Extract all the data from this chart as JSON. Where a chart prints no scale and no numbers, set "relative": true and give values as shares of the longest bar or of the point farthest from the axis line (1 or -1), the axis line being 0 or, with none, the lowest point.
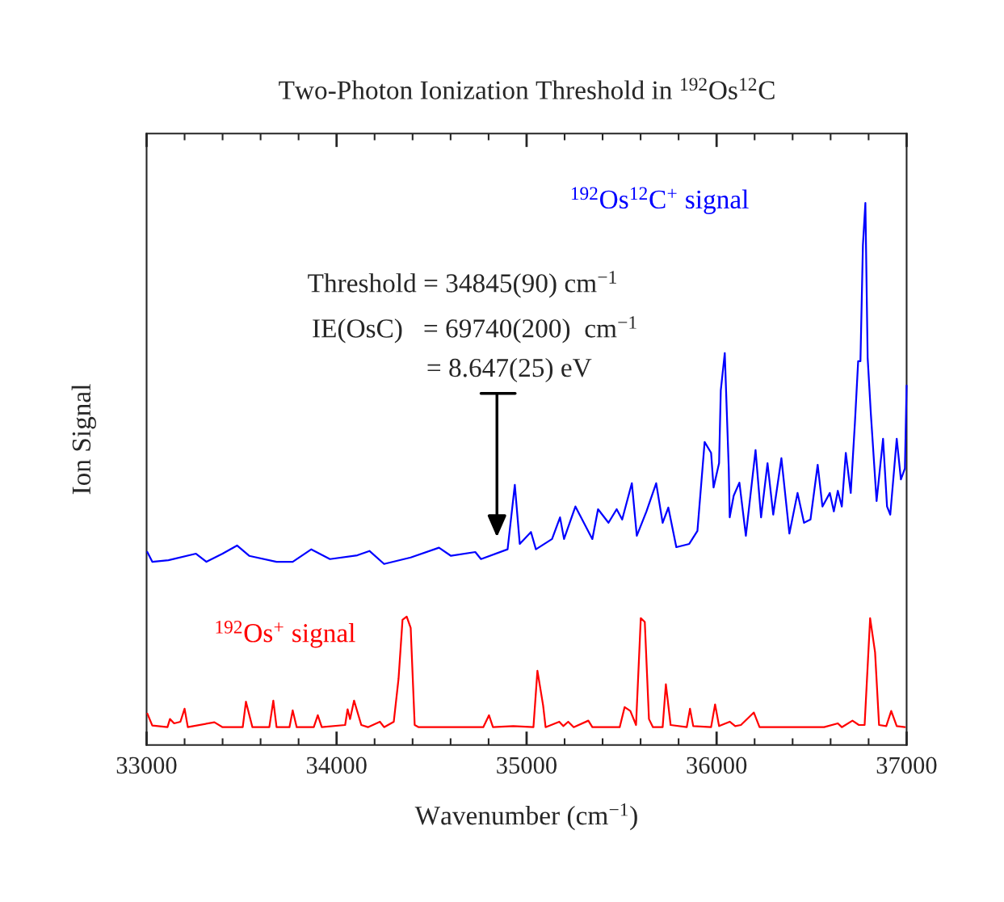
{
  "chart_data": {
    "type": "line",
    "title": "Two-Photon Ionization Threshold in $^{192}$Os$^{12}$C",
    "xlabel": "Wavenumber (cm$^{−1}$)",
    "ylabel": "Ion Signal",
    "relative": true,
    "legend": false,
    "grid": false,
    "marker": "none",
    "line_style": "solid",
    "xlim": [
      33000,
      37000
    ],
    "xticks": [
      33000,
      {
        "value": 33200,
        "label": null
      },
      {
        "value": 33400,
        "label": null
      },
      {
        "value": 33600,
        "label": null
      },
      {
        "value": 33800,
        "label": null
      },
      34000,
      {
        "value": 34200,
        "label": null
      },
      {
        "value": 34400,
        "label": null
      },
      {
        "value": 34600,
        "label": null
      },
      {
        "value": 34800,
        "label": null
      },
      35000,
      {
        "value": 35200,
        "label": null
      },
      {
        "value": 35400,
        "label": null
      },
      {
        "value": 35600,
        "label": null
      },
      {
        "value": 35800,
        "label": null
      },
      36000,
      {
        "value": 36200,
        "label": null
      },
      {
        "value": 36400,
        "label": null
      },
      {
        "value": 36600,
        "label": null
      },
      {
        "value": 36800,
        "label": null
      },
      37000
    ],
    "series": [
      {
        "name": "$^{192}$Os$^{12}$C$^{+}$ signal",
        "color": "#0000ff",
        "x": [
          33004,
          33030,
          33115,
          33260,
          33315,
          33400,
          33476,
          33540,
          33684,
          33769,
          33867,
          33965,
          34109,
          34173,
          34250,
          34390,
          34539,
          34602,
          34730,
          34760,
          34900,
          34938,
          34964,
          35023,
          35049,
          35134,
          35176,
          35197,
          35257,
          35346,
          35376,
          35431,
          35474,
          35503,
          35554,
          35580,
          35631,
          35682,
          35716,
          35746,
          35788,
          35856,
          35899,
          35937,
          35971,
          35984,
          36013,
          36022,
          36043,
          36064,
          36069,
          36090,
          36120,
          36154,
          36205,
          36234,
          36268,
          36298,
          36341,
          36383,
          36426,
          36460,
          36494,
          36532,
          36557,
          36596,
          36617,
          36638,
          36659,
          36680,
          36706,
          36728,
          36745,
          36757,
          36770,
          36783,
          36795,
          36812,
          36842,
          36876,
          36897,
          36914,
          36948,
          36970,
          36991,
          37000
        ],
        "values": [
          0.356,
          0.338,
          0.341,
          0.353,
          0.338,
          0.353,
          0.368,
          0.349,
          0.338,
          0.338,
          0.361,
          0.343,
          0.35,
          0.358,
          0.334,
          0.346,
          0.364,
          0.349,
          0.356,
          0.343,
          0.361,
          0.48,
          0.371,
          0.393,
          0.361,
          0.38,
          0.42,
          0.38,
          0.44,
          0.38,
          0.435,
          0.41,
          0.435,
          0.416,
          0.483,
          0.386,
          0.431,
          0.483,
          0.41,
          0.438,
          0.365,
          0.371,
          0.395,
          0.559,
          0.539,
          0.475,
          0.52,
          0.654,
          0.723,
          0.51,
          0.42,
          0.46,
          0.484,
          0.386,
          0.544,
          0.42,
          0.52,
          0.425,
          0.529,
          0.39,
          0.465,
          0.41,
          0.416,
          0.517,
          0.44,
          0.465,
          0.431,
          0.469,
          0.44,
          0.539,
          0.465,
          0.595,
          0.708,
          0.708,
          0.922,
          1.0,
          0.714,
          0.61,
          0.45,
          0.565,
          0.44,
          0.425,
          0.565,
          0.49,
          0.51,
          0.663
        ]
      },
      {
        "name": "$^{192}$Os$^{+}$ signal",
        "color": "#ff0000",
        "x": [
          33004,
          33030,
          33110,
          33123,
          33145,
          33178,
          33200,
          33217,
          33357,
          33400,
          33506,
          33523,
          33557,
          33646,
          33667,
          33684,
          33752,
          33769,
          33790,
          33880,
          33901,
          33922,
          34045,
          34058,
          34071,
          34092,
          34130,
          34165,
          34228,
          34250,
          34301,
          34326,
          34347,
          34369,
          34390,
          34411,
          34432,
          34772,
          34802,
          34823,
          34930,
          35036,
          35057,
          35087,
          35100,
          35172,
          35193,
          35219,
          35248,
          35325,
          35346,
          35490,
          35516,
          35546,
          35576,
          35601,
          35622,
          35644,
          35665,
          35716,
          35733,
          35758,
          35843,
          35860,
          35877,
          35971,
          35992,
          36013,
          36069,
          36098,
          36128,
          36196,
          36226,
          36566,
          36638,
          36659,
          36715,
          36749,
          36779,
          36808,
          36834,
          36855,
          36893,
          36919,
          36948,
          36991
        ],
        "values": [
          0.058,
          0.036,
          0.033,
          0.048,
          0.04,
          0.043,
          0.067,
          0.033,
          0.042,
          0.033,
          0.033,
          0.08,
          0.033,
          0.033,
          0.082,
          0.033,
          0.033,
          0.064,
          0.033,
          0.033,
          0.055,
          0.033,
          0.037,
          0.066,
          0.048,
          0.082,
          0.037,
          0.033,
          0.043,
          0.033,
          0.043,
          0.122,
          0.231,
          0.237,
          0.216,
          0.037,
          0.033,
          0.033,
          0.055,
          0.033,
          0.035,
          0.033,
          0.137,
          0.073,
          0.033,
          0.043,
          0.035,
          0.043,
          0.033,
          0.045,
          0.033,
          0.033,
          0.07,
          0.063,
          0.037,
          0.234,
          0.227,
          0.048,
          0.033,
          0.033,
          0.112,
          0.037,
          0.033,
          0.067,
          0.035,
          0.033,
          0.075,
          0.035,
          0.043,
          0.035,
          0.037,
          0.06,
          0.033,
          0.033,
          0.04,
          0.033,
          0.045,
          0.037,
          0.037,
          0.234,
          0.171,
          0.037,
          0.035,
          0.063,
          0.035,
          0.033
        ]
      }
    ],
    "annotations": [
      "Threshold = 34845(90) cm$^{−1}$",
      "IE(OsC)   = 69740(200)  cm$^{−1}$",
      "= 8.647(25) eV"
    ]
  }
}
